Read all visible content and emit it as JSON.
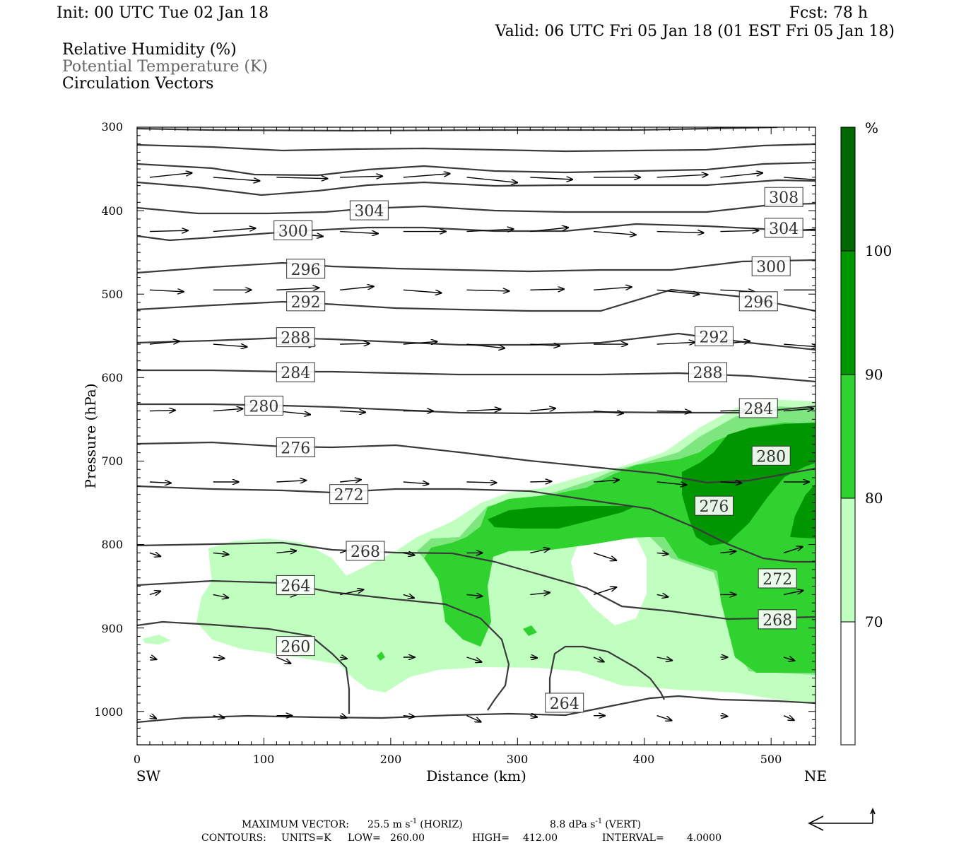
{
  "header": {
    "init": "Init: 00 UTC Tue 02 Jan 18",
    "fcst": "Fcst:   78 h",
    "valid": "Valid: 06 UTC Fri 05 Jan 18 (01 EST Fri 05 Jan 18)",
    "legend_rh": "Relative Humidity (%)",
    "legend_theta": "Potential Temperature (K)",
    "legend_vectors": "Circulation Vectors"
  },
  "chart_data": {
    "type": "contour",
    "xlabel": "Distance (km)",
    "ylabel": "Pressure (hPa)",
    "xlim": [
      0,
      535
    ],
    "ylim": [
      1040,
      300
    ],
    "y_scale": "linear, inverted",
    "x_ticks": [
      0,
      100,
      200,
      300,
      400,
      500
    ],
    "y_ticks": [
      300,
      400,
      500,
      600,
      700,
      800,
      900,
      1000
    ],
    "x_end_labels": {
      "left": "SW",
      "right": "NE"
    },
    "colorbar": {
      "unit": "%",
      "levels": [
        70,
        80,
        90,
        100
      ],
      "colors": [
        "#ffffff",
        "#c0ffc0",
        "#7ee67e",
        "#30d230",
        "#009600",
        "#006800"
      ]
    },
    "theta_contour_labels": [
      {
        "label": "308",
        "x": 510,
        "p": 384
      },
      {
        "label": "304",
        "x": 183,
        "p": 400
      },
      {
        "label": "304",
        "x": 510,
        "p": 421
      },
      {
        "label": "300",
        "x": 123,
        "p": 424
      },
      {
        "label": "300",
        "x": 500,
        "p": 467
      },
      {
        "label": "296",
        "x": 133,
        "p": 470
      },
      {
        "label": "296",
        "x": 490,
        "p": 509
      },
      {
        "label": "292",
        "x": 133,
        "p": 509
      },
      {
        "label": "292",
        "x": 455,
        "p": 551
      },
      {
        "label": "288",
        "x": 125,
        "p": 552
      },
      {
        "label": "288",
        "x": 450,
        "p": 594
      },
      {
        "label": "284",
        "x": 125,
        "p": 594
      },
      {
        "label": "284",
        "x": 490,
        "p": 637
      },
      {
        "label": "280",
        "x": 100,
        "p": 634
      },
      {
        "label": "280",
        "x": 500,
        "p": 694
      },
      {
        "label": "276",
        "x": 125,
        "p": 684
      },
      {
        "label": "276",
        "x": 455,
        "p": 754
      },
      {
        "label": "272",
        "x": 167,
        "p": 740
      },
      {
        "label": "272",
        "x": 505,
        "p": 841
      },
      {
        "label": "268",
        "x": 180,
        "p": 808
      },
      {
        "label": "268",
        "x": 505,
        "p": 890
      },
      {
        "label": "264",
        "x": 125,
        "p": 849
      },
      {
        "label": "264",
        "x": 337,
        "p": 990
      },
      {
        "label": "260",
        "x": 125,
        "p": 922
      }
    ],
    "vector_rows_hpa": [
      360,
      425,
      495,
      560,
      640,
      725,
      810,
      860,
      935,
      1005
    ]
  },
  "footer": {
    "max_vector_label": "MAXIMUM VECTOR:",
    "max_horiz": "25.5 m s",
    "max_horiz_exp": "-1",
    "max_horiz_tag": "(HORIZ)",
    "max_vert": "8.8 dPa s",
    "max_vert_exp": "-1",
    "max_vert_tag": "(VERT)",
    "contours_label": "CONTOURS:",
    "units": "UNITS=K",
    "low_label": "LOW=",
    "low": "260.00",
    "high_label": "HIGH=",
    "high": "412.00",
    "interval_label": "INTERVAL=",
    "interval": "4.0000"
  }
}
